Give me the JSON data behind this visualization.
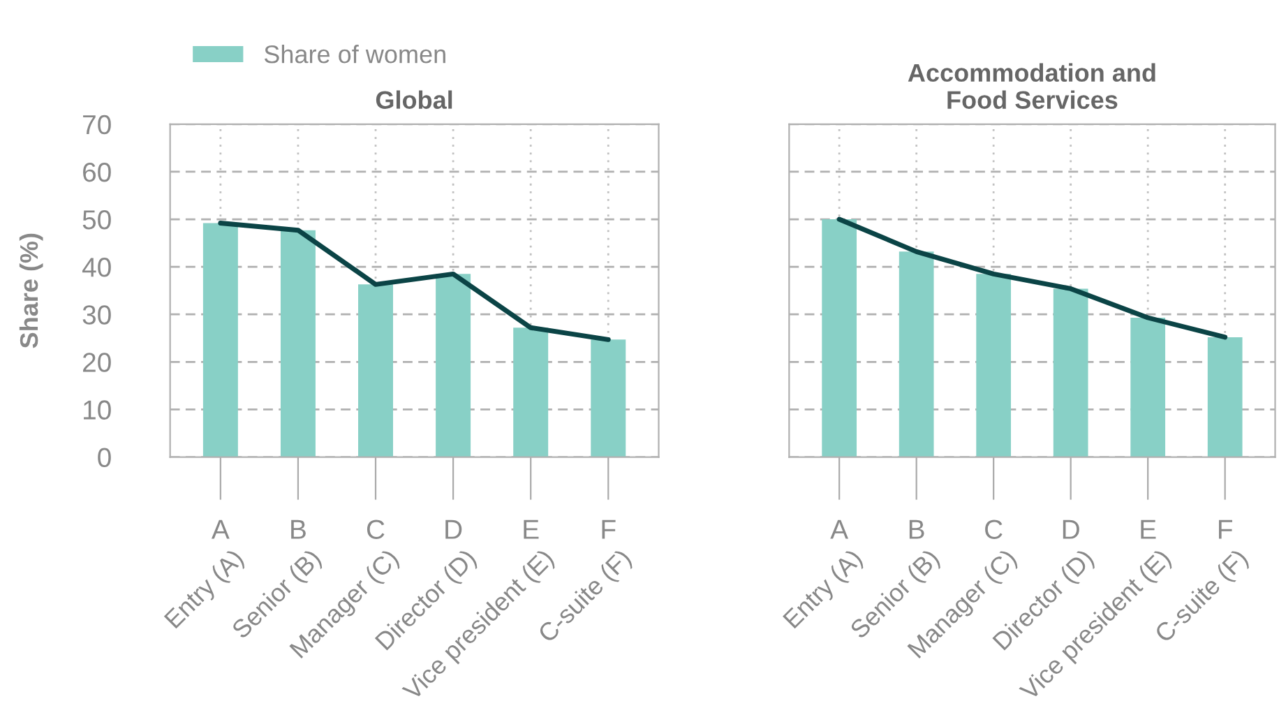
{
  "chart_data": [
    {
      "type": "bar",
      "title": "Global",
      "ylabel": "Share (%)",
      "categories": [
        "A",
        "B",
        "C",
        "D",
        "E",
        "F"
      ],
      "annotations": [
        "Entry (A)",
        "Senior (B)",
        "Manager (C)",
        "Director (D)",
        "Vice president (E)",
        "C-suite (F)"
      ],
      "series": [
        {
          "name": "Share of women",
          "color": "#88d0c6",
          "values": [
            49.2,
            47.7,
            36.3,
            38.5,
            27.2,
            24.7
          ]
        },
        {
          "type": "line",
          "color": "#0b4446",
          "values": [
            49.2,
            47.7,
            36.3,
            38.5,
            27.2,
            24.7
          ]
        }
      ],
      "ylim": [
        0,
        70
      ],
      "yticks": [
        0,
        10,
        20,
        30,
        40,
        50,
        60,
        70
      ],
      "grid": true,
      "legend": "top left",
      "marker": "none",
      "line_style": "solid"
    },
    {
      "type": "bar",
      "title": "Accommodation and\nFood Services",
      "categories": [
        "A",
        "B",
        "C",
        "D",
        "E",
        "F"
      ],
      "annotations": [
        "Entry (A)",
        "Senior (B)",
        "Manager (C)",
        "Director (D)",
        "Vice president (E)",
        "C-suite (F)"
      ],
      "series": [
        {
          "color": "#88d0c6",
          "values": [
            50.0,
            43.2,
            38.5,
            35.4,
            29.3,
            25.2
          ]
        },
        {
          "type": "line",
          "color": "#0b4446",
          "values": [
            50.0,
            43.2,
            38.5,
            35.4,
            29.3,
            25.2
          ]
        }
      ],
      "ylim": [
        0,
        70
      ],
      "yticks": [
        0,
        10,
        20,
        30,
        40,
        50,
        60,
        70
      ],
      "grid": true,
      "tick_labels": "x",
      "marker": "none",
      "line_style": "solid"
    }
  ]
}
